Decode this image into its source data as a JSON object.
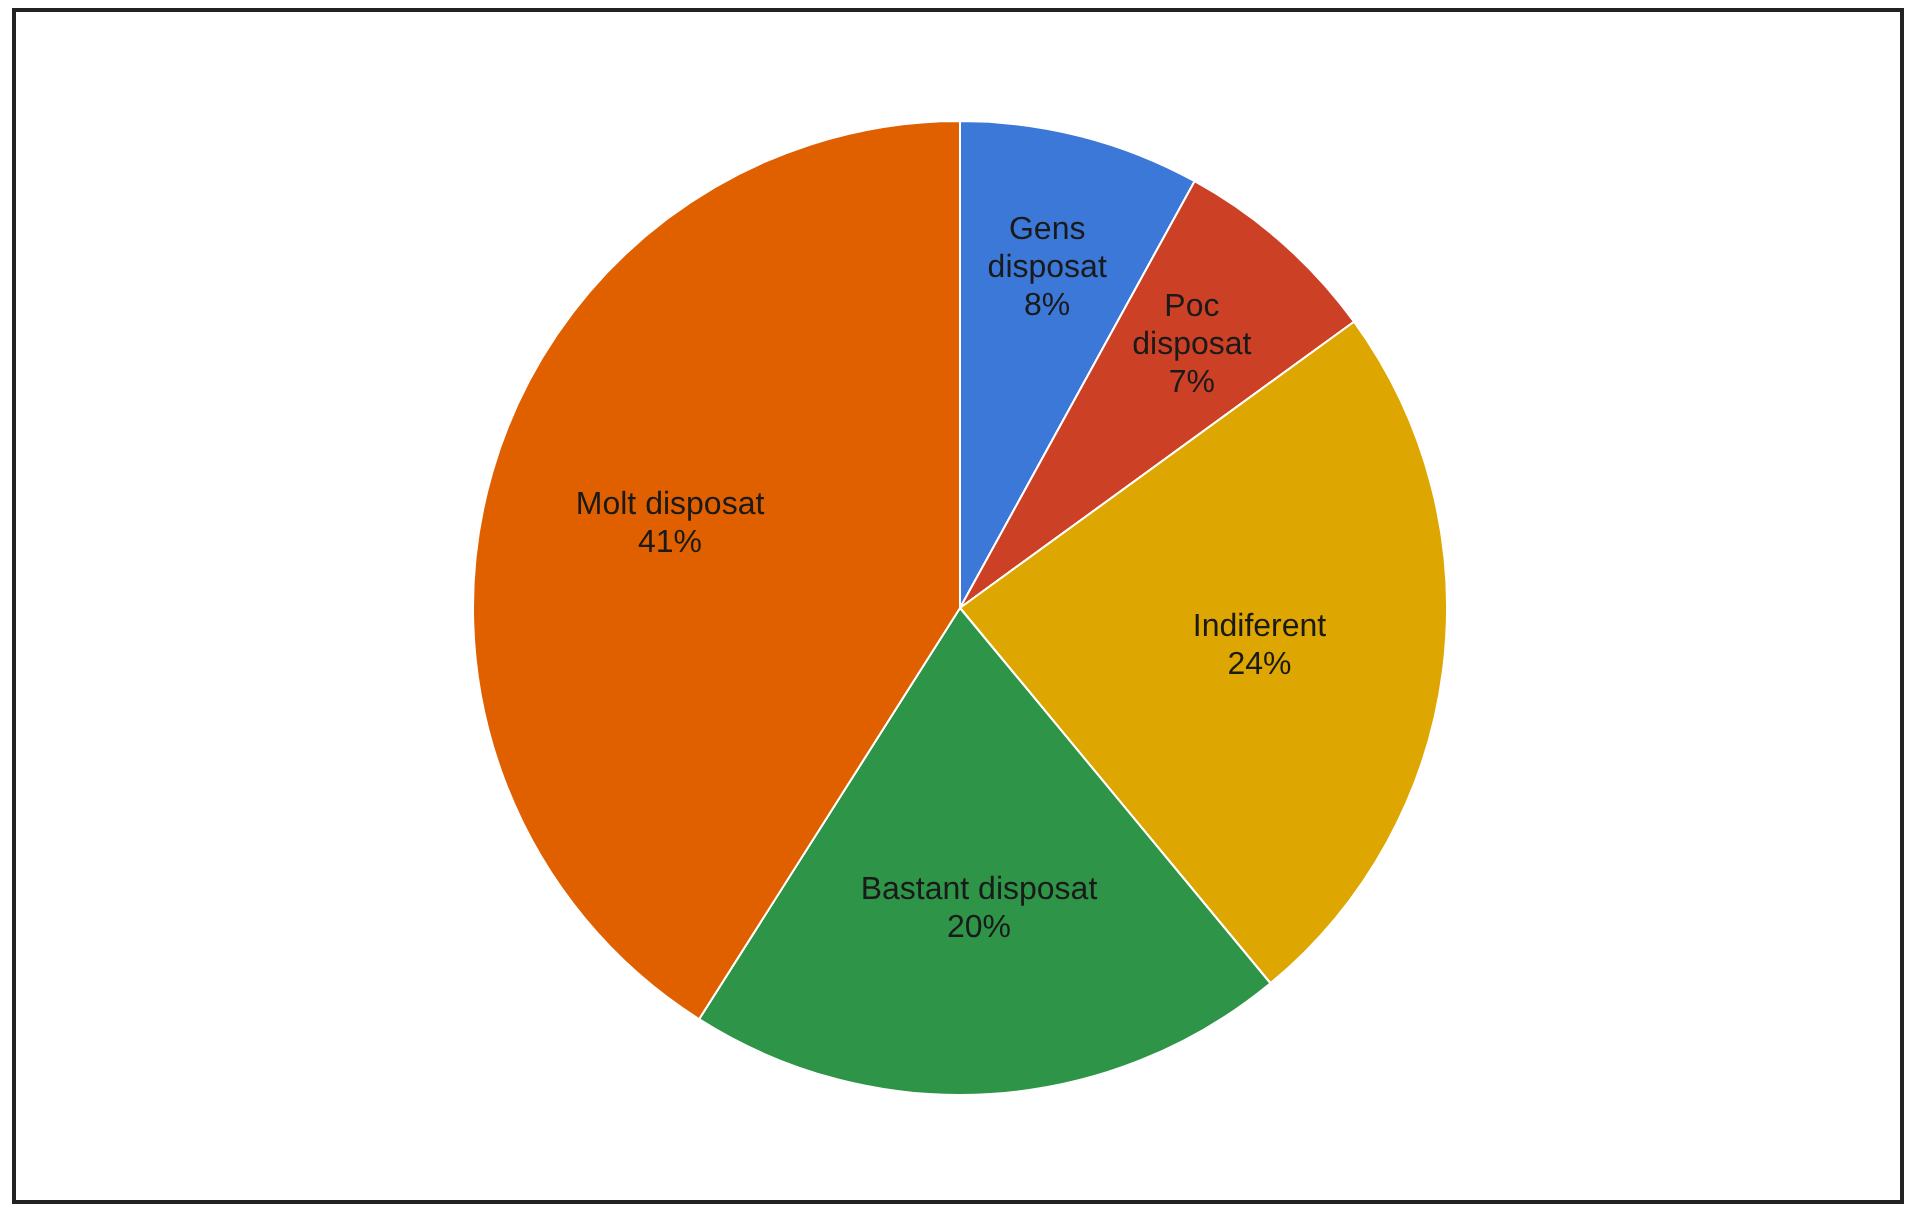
{
  "chart_data": {
    "type": "pie",
    "categories": [
      "Gens disposat",
      "Poc disposat",
      "Indiferent",
      "Bastant disposat",
      "Molt disposat"
    ],
    "values": [
      8,
      7,
      24,
      20,
      41
    ],
    "colors": [
      "#3c78d8",
      "#cc4125",
      "#dea600",
      "#2e9447",
      "#e06000"
    ],
    "value_labels": [
      "8%",
      "7%",
      "24%",
      "20%",
      "41%"
    ],
    "legend": false
  }
}
